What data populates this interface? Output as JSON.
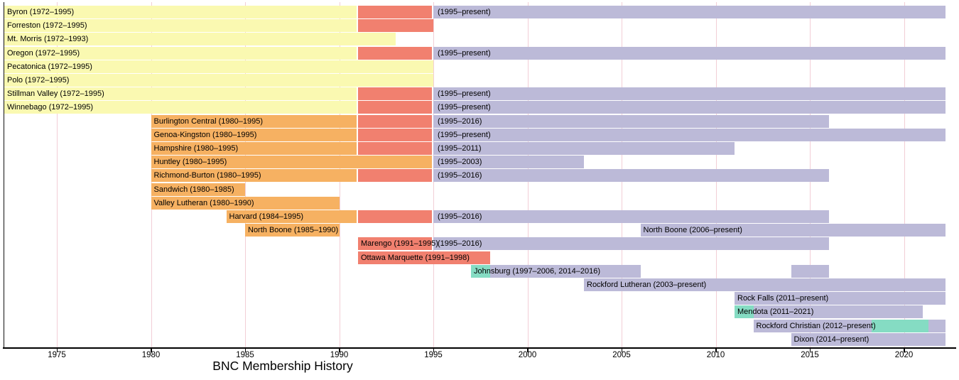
{
  "chart_data": {
    "type": "timeline",
    "title": "BNC Membership History",
    "present_numeric": 2022.2,
    "x_range": [
      1972,
      2022.2
    ],
    "grid": true,
    "colors": {
      "yellow": "#FAF9B1",
      "orange": "#F6B162",
      "red": "#F1806F",
      "purple": "#BCBAD8",
      "teal": "#85DCC3",
      "gridline": "#F2CED6",
      "axis": "#000000"
    },
    "x_axis": {
      "ticks": [
        {
          "label": "1975",
          "year": 1975
        },
        {
          "label": "1980",
          "year": 1980
        },
        {
          "label": "1985",
          "year": 1985
        },
        {
          "label": "1990",
          "year": 1990
        },
        {
          "label": "1995",
          "year": 1995
        },
        {
          "label": "2000",
          "year": 2000
        },
        {
          "label": "2005",
          "year": 2005
        },
        {
          "label": "2010",
          "year": 2010
        },
        {
          "label": "2015",
          "year": 2015
        },
        {
          "label": "2020",
          "year": 2020
        }
      ]
    },
    "rows": [
      {
        "name": "Byron",
        "labels": [
          {
            "text": "Byron (1972–1995)",
            "year": 1972
          },
          {
            "text": "(1995–present)",
            "year": 1995
          }
        ],
        "segments": [
          {
            "start": 1972,
            "end": 1991,
            "color": "yellow"
          },
          {
            "start": 1991,
            "end": 1995,
            "color": "red"
          },
          {
            "start": 1995,
            "end": "present",
            "color": "purple"
          }
        ]
      },
      {
        "name": "Forreston",
        "labels": [
          {
            "text": "Forreston (1972–1995)",
            "year": 1972
          }
        ],
        "segments": [
          {
            "start": 1972,
            "end": 1991,
            "color": "yellow"
          },
          {
            "start": 1991,
            "end": 1995,
            "color": "red"
          }
        ]
      },
      {
        "name": "Mt. Morris",
        "labels": [
          {
            "text": "Mt. Morris (1972–1993)",
            "year": 1972
          }
        ],
        "segments": [
          {
            "start": 1972,
            "end": 1993,
            "color": "yellow"
          }
        ]
      },
      {
        "name": "Oregon",
        "labels": [
          {
            "text": "Oregon (1972–1995)",
            "year": 1972
          },
          {
            "text": "(1995–present)",
            "year": 1995
          }
        ],
        "segments": [
          {
            "start": 1972,
            "end": 1991,
            "color": "yellow"
          },
          {
            "start": 1991,
            "end": 1995,
            "color": "red"
          },
          {
            "start": 1995,
            "end": "present",
            "color": "purple"
          }
        ]
      },
      {
        "name": "Pecatonica",
        "labels": [
          {
            "text": "Pecatonica (1972–1995)",
            "year": 1972
          }
        ],
        "segments": [
          {
            "start": 1972,
            "end": 1995,
            "color": "yellow"
          }
        ]
      },
      {
        "name": "Polo",
        "labels": [
          {
            "text": "Polo (1972–1995)",
            "year": 1972
          }
        ],
        "segments": [
          {
            "start": 1972,
            "end": 1995,
            "color": "yellow"
          }
        ]
      },
      {
        "name": "Stillman Valley",
        "labels": [
          {
            "text": "Stillman Valley (1972–1995)",
            "year": 1972
          },
          {
            "text": "(1995–present)",
            "year": 1995
          }
        ],
        "segments": [
          {
            "start": 1972,
            "end": 1991,
            "color": "yellow"
          },
          {
            "start": 1991,
            "end": 1995,
            "color": "red"
          },
          {
            "start": 1995,
            "end": "present",
            "color": "purple"
          }
        ]
      },
      {
        "name": "Winnebago",
        "labels": [
          {
            "text": "Winnebago (1972–1995)",
            "year": 1972
          },
          {
            "text": "(1995–present)",
            "year": 1995
          }
        ],
        "segments": [
          {
            "start": 1972,
            "end": 1991,
            "color": "yellow"
          },
          {
            "start": 1991,
            "end": 1995,
            "color": "red"
          },
          {
            "start": 1995,
            "end": "present",
            "color": "purple"
          }
        ]
      },
      {
        "name": "Burlington Central",
        "labels": [
          {
            "text": "Burlington Central (1980–1995)",
            "year": 1980
          },
          {
            "text": "(1995–2016)",
            "year": 1995
          }
        ],
        "segments": [
          {
            "start": 1980,
            "end": 1991,
            "color": "orange"
          },
          {
            "start": 1991,
            "end": 1995,
            "color": "red"
          },
          {
            "start": 1995,
            "end": 2016,
            "color": "purple"
          }
        ]
      },
      {
        "name": "Genoa-Kingston",
        "labels": [
          {
            "text": "Genoa-Kingston (1980–1995)",
            "year": 1980
          },
          {
            "text": "(1995–present)",
            "year": 1995
          }
        ],
        "segments": [
          {
            "start": 1980,
            "end": 1991,
            "color": "orange"
          },
          {
            "start": 1991,
            "end": 1995,
            "color": "red"
          },
          {
            "start": 1995,
            "end": "present",
            "color": "purple"
          }
        ]
      },
      {
        "name": "Hampshire",
        "labels": [
          {
            "text": "Hampshire (1980–1995)",
            "year": 1980
          },
          {
            "text": "(1995–2011)",
            "year": 1995
          }
        ],
        "segments": [
          {
            "start": 1980,
            "end": 1991,
            "color": "orange"
          },
          {
            "start": 1991,
            "end": 1995,
            "color": "red"
          },
          {
            "start": 1995,
            "end": 2011,
            "color": "purple"
          }
        ]
      },
      {
        "name": "Huntley",
        "labels": [
          {
            "text": "Huntley (1980–1995)",
            "year": 1980
          },
          {
            "text": "(1995–2003)",
            "year": 1995
          }
        ],
        "segments": [
          {
            "start": 1980,
            "end": 1995,
            "color": "orange"
          },
          {
            "start": 1995,
            "end": 2003,
            "color": "purple"
          }
        ]
      },
      {
        "name": "Richmond-Burton",
        "labels": [
          {
            "text": "Richmond-Burton (1980–1995)",
            "year": 1980
          },
          {
            "text": "(1995–2016)",
            "year": 1995
          }
        ],
        "segments": [
          {
            "start": 1980,
            "end": 1991,
            "color": "orange"
          },
          {
            "start": 1991,
            "end": 1995,
            "color": "red"
          },
          {
            "start": 1995,
            "end": 2016,
            "color": "purple"
          }
        ]
      },
      {
        "name": "Sandwich",
        "labels": [
          {
            "text": "Sandwich (1980–1985)",
            "year": 1980
          }
        ],
        "segments": [
          {
            "start": 1980,
            "end": 1985,
            "color": "orange"
          }
        ]
      },
      {
        "name": "Valley Lutheran",
        "labels": [
          {
            "text": "Valley Lutheran (1980–1990)",
            "year": 1980
          }
        ],
        "segments": [
          {
            "start": 1980,
            "end": 1990,
            "color": "orange"
          }
        ]
      },
      {
        "name": "Harvard",
        "labels": [
          {
            "text": "Harvard (1984–1995)",
            "year": 1984
          },
          {
            "text": "(1995–2016)",
            "year": 1995
          }
        ],
        "segments": [
          {
            "start": 1984,
            "end": 1991,
            "color": "orange"
          },
          {
            "start": 1991,
            "end": 1995,
            "color": "red"
          },
          {
            "start": 1995,
            "end": 2016,
            "color": "purple"
          }
        ]
      },
      {
        "name": "North Boone",
        "labels": [
          {
            "text": "North Boone (1985–1990)",
            "year": 1985
          },
          {
            "text": "North Boone (2006–present)",
            "year": 2006
          }
        ],
        "segments": [
          {
            "start": 1985,
            "end": 1990,
            "color": "orange"
          },
          {
            "start": 2006,
            "end": "present",
            "color": "purple"
          }
        ]
      },
      {
        "name": "Marengo",
        "labels": [
          {
            "text": "Marengo (1991–1995)",
            "year": 1991
          },
          {
            "text": "(1995–2016)",
            "year": 1995
          }
        ],
        "segments": [
          {
            "start": 1991,
            "end": 1995,
            "color": "red"
          },
          {
            "start": 1995,
            "end": 2016,
            "color": "purple"
          }
        ]
      },
      {
        "name": "Ottawa Marquette",
        "labels": [
          {
            "text": "Ottawa Marquette (1991–1998)",
            "year": 1991
          }
        ],
        "segments": [
          {
            "start": 1991,
            "end": 1998,
            "color": "red"
          }
        ]
      },
      {
        "name": "Johnsburg",
        "labels": [
          {
            "text": "Johnsburg (1997–2006, 2014–2016)",
            "year": 1997
          }
        ],
        "segments": [
          {
            "start": 1997,
            "end": 1998,
            "color": "teal"
          },
          {
            "start": 1998,
            "end": 2006,
            "color": "purple"
          },
          {
            "start": 2014,
            "end": 2016,
            "color": "purple"
          }
        ]
      },
      {
        "name": "Rockford Lutheran",
        "labels": [
          {
            "text": "Rockford Lutheran (2003–present)",
            "year": 2003
          }
        ],
        "segments": [
          {
            "start": 2003,
            "end": "present",
            "color": "purple"
          }
        ]
      },
      {
        "name": "Rock Falls",
        "labels": [
          {
            "text": "Rock Falls (2011–present)",
            "year": 2011
          }
        ],
        "segments": [
          {
            "start": 2011,
            "end": "present",
            "color": "purple"
          }
        ]
      },
      {
        "name": "Mendota",
        "labels": [
          {
            "text": "Mendota (2011–2021)",
            "year": 2011
          }
        ],
        "segments": [
          {
            "start": 2011,
            "end": 2012,
            "color": "teal"
          },
          {
            "start": 2012,
            "end": 2021,
            "color": "purple"
          }
        ]
      },
      {
        "name": "Rockford Christian",
        "labels": [
          {
            "text": "Rockford Christian (2012–present)",
            "year": 2012
          }
        ],
        "segments": [
          {
            "start": 2012,
            "end": 2018.3,
            "color": "purple"
          },
          {
            "start": 2018.3,
            "end": 2021.3,
            "color": "teal"
          },
          {
            "start": 2021.3,
            "end": "present",
            "color": "purple"
          }
        ]
      },
      {
        "name": "Dixon",
        "labels": [
          {
            "text": "Dixon (2014–present)",
            "year": 2014
          }
        ],
        "segments": [
          {
            "start": 2014,
            "end": "present",
            "color": "purple"
          }
        ]
      }
    ]
  }
}
